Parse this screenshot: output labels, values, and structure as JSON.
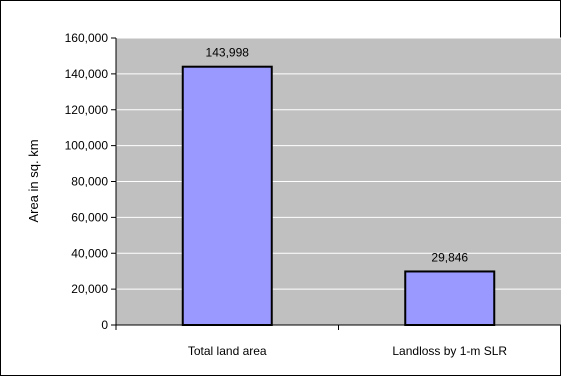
{
  "chart_data": {
    "type": "bar",
    "categories": [
      "Total land area",
      "Landloss by 1-m SLR"
    ],
    "values": [
      143998,
      29846
    ],
    "data_labels": [
      "143,998",
      "29,846"
    ],
    "title": "",
    "xlabel": "",
    "ylabel": "Area in sq. km",
    "ylim": [
      0,
      160000
    ],
    "y_ticks": [
      0,
      20000,
      40000,
      60000,
      80000,
      100000,
      120000,
      140000,
      160000
    ],
    "y_tick_labels": [
      "0",
      "20,000",
      "40,000",
      "60,000",
      "80,000",
      "100,000",
      "120,000",
      "140,000",
      "160,000"
    ],
    "grid": true,
    "legend": "none",
    "colors": {
      "plot_background": "#c0c0c0",
      "bar_fill": "#9999ff",
      "bar_stroke": "#000000",
      "gridline": "#ffffff"
    }
  }
}
